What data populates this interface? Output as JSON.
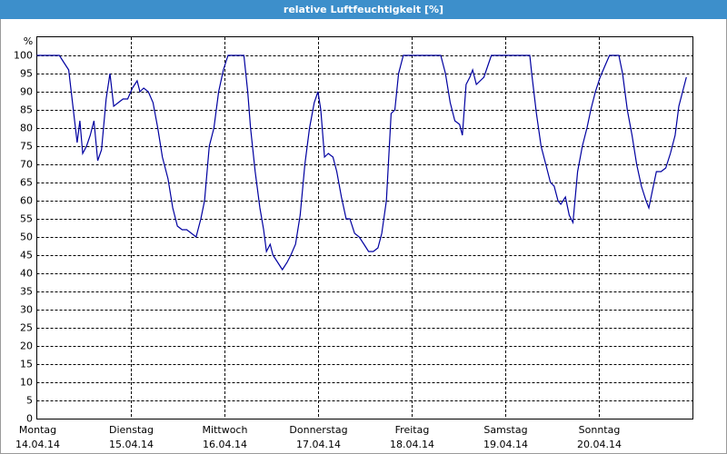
{
  "chart_data": {
    "type": "line",
    "title": "relative Luftfeuchtigkeit [%]",
    "y_unit": "%",
    "xlim": [
      0,
      7
    ],
    "xticks": [
      {
        "value": 0,
        "label": "Montag",
        "sublabel": "14.04.14"
      },
      {
        "value": 1,
        "label": "Dienstag",
        "sublabel": "15.04.14"
      },
      {
        "value": 2,
        "label": "Mittwoch",
        "sublabel": "16.04.14"
      },
      {
        "value": 3,
        "label": "Donnerstag",
        "sublabel": "17.04.14"
      },
      {
        "value": 4,
        "label": "Freitag",
        "sublabel": "18.04.14"
      },
      {
        "value": 5,
        "label": "Samstag",
        "sublabel": "19.04.14"
      },
      {
        "value": 6,
        "label": "Sonntag",
        "sublabel": "20.04.14"
      }
    ],
    "ylim": [
      0,
      100
    ],
    "yticks": [
      0,
      5,
      10,
      15,
      20,
      25,
      30,
      35,
      40,
      45,
      50,
      55,
      60,
      65,
      70,
      75,
      80,
      85,
      90,
      95,
      100
    ],
    "grid": true,
    "series": [
      {
        "color": "#0000a0",
        "x": [
          0,
          0.24,
          0.29,
          0.34,
          0.39,
          0.43,
          0.46,
          0.49,
          0.53,
          0.57,
          0.61,
          0.65,
          0.69,
          0.74,
          0.78,
          0.82,
          0.87,
          0.92,
          0.97,
          1.02,
          1.07,
          1.1,
          1.14,
          1.19,
          1.24,
          1.29,
          1.34,
          1.4,
          1.45,
          1.5,
          1.55,
          1.6,
          1.65,
          1.7,
          1.75,
          1.79,
          1.84,
          1.89,
          1.94,
          1.99,
          2.04,
          2.13,
          2.21,
          2.25,
          2.28,
          2.33,
          2.38,
          2.42,
          2.45,
          2.49,
          2.52,
          2.57,
          2.62,
          2.67,
          2.71,
          2.76,
          2.81,
          2.86,
          2.91,
          2.96,
          3.0,
          3.03,
          3.07,
          3.11,
          3.16,
          3.2,
          3.25,
          3.3,
          3.34,
          3.39,
          3.44,
          3.49,
          3.54,
          3.59,
          3.64,
          3.68,
          3.73,
          3.78,
          3.82,
          3.86,
          3.91,
          4.02,
          4.17,
          4.27,
          4.31,
          4.36,
          4.41,
          4.46,
          4.51,
          4.54,
          4.58,
          4.62,
          4.65,
          4.69,
          4.73,
          4.77,
          4.81,
          4.85,
          4.9,
          5.04,
          5.19,
          5.26,
          5.28,
          5.33,
          5.38,
          5.43,
          5.48,
          5.52,
          5.56,
          5.59,
          5.64,
          5.68,
          5.72,
          5.77,
          5.82,
          5.87,
          5.91,
          5.96,
          6.01,
          6.06,
          6.11,
          6.21,
          6.25,
          6.3,
          6.35,
          6.4,
          6.45,
          6.5,
          6.53,
          6.57,
          6.61,
          6.66,
          6.71,
          6.76,
          6.81,
          6.85,
          6.88,
          6.93
        ],
        "values": [
          100,
          100,
          98,
          96,
          85,
          76,
          82,
          73,
          75,
          78,
          82,
          71,
          74,
          88,
          95,
          86,
          87,
          88,
          88,
          91,
          93,
          90,
          91,
          90,
          87,
          80,
          72,
          66,
          58,
          53,
          52,
          52,
          51,
          50,
          55,
          60,
          75,
          80,
          90,
          96,
          100,
          100,
          100,
          90,
          80,
          68,
          58,
          52,
          46,
          48,
          45,
          43,
          41,
          43,
          45,
          48,
          56,
          70,
          80,
          87,
          90,
          85,
          72,
          73,
          72,
          68,
          61,
          55,
          55,
          51,
          50,
          48,
          46,
          46,
          47,
          51,
          60,
          84,
          85,
          95,
          100,
          100,
          100,
          100,
          100,
          95,
          87,
          82,
          81,
          78,
          92,
          94,
          96,
          92,
          93,
          94,
          97,
          100,
          100,
          100,
          100,
          100,
          95,
          84,
          75,
          70,
          65,
          64,
          60,
          59,
          61,
          56,
          54,
          68,
          75,
          80,
          85,
          90,
          94,
          97,
          100,
          100,
          95,
          85,
          78,
          70,
          64,
          60,
          58,
          63,
          68,
          68,
          69,
          73,
          78,
          86,
          89,
          94
        ]
      }
    ]
  }
}
